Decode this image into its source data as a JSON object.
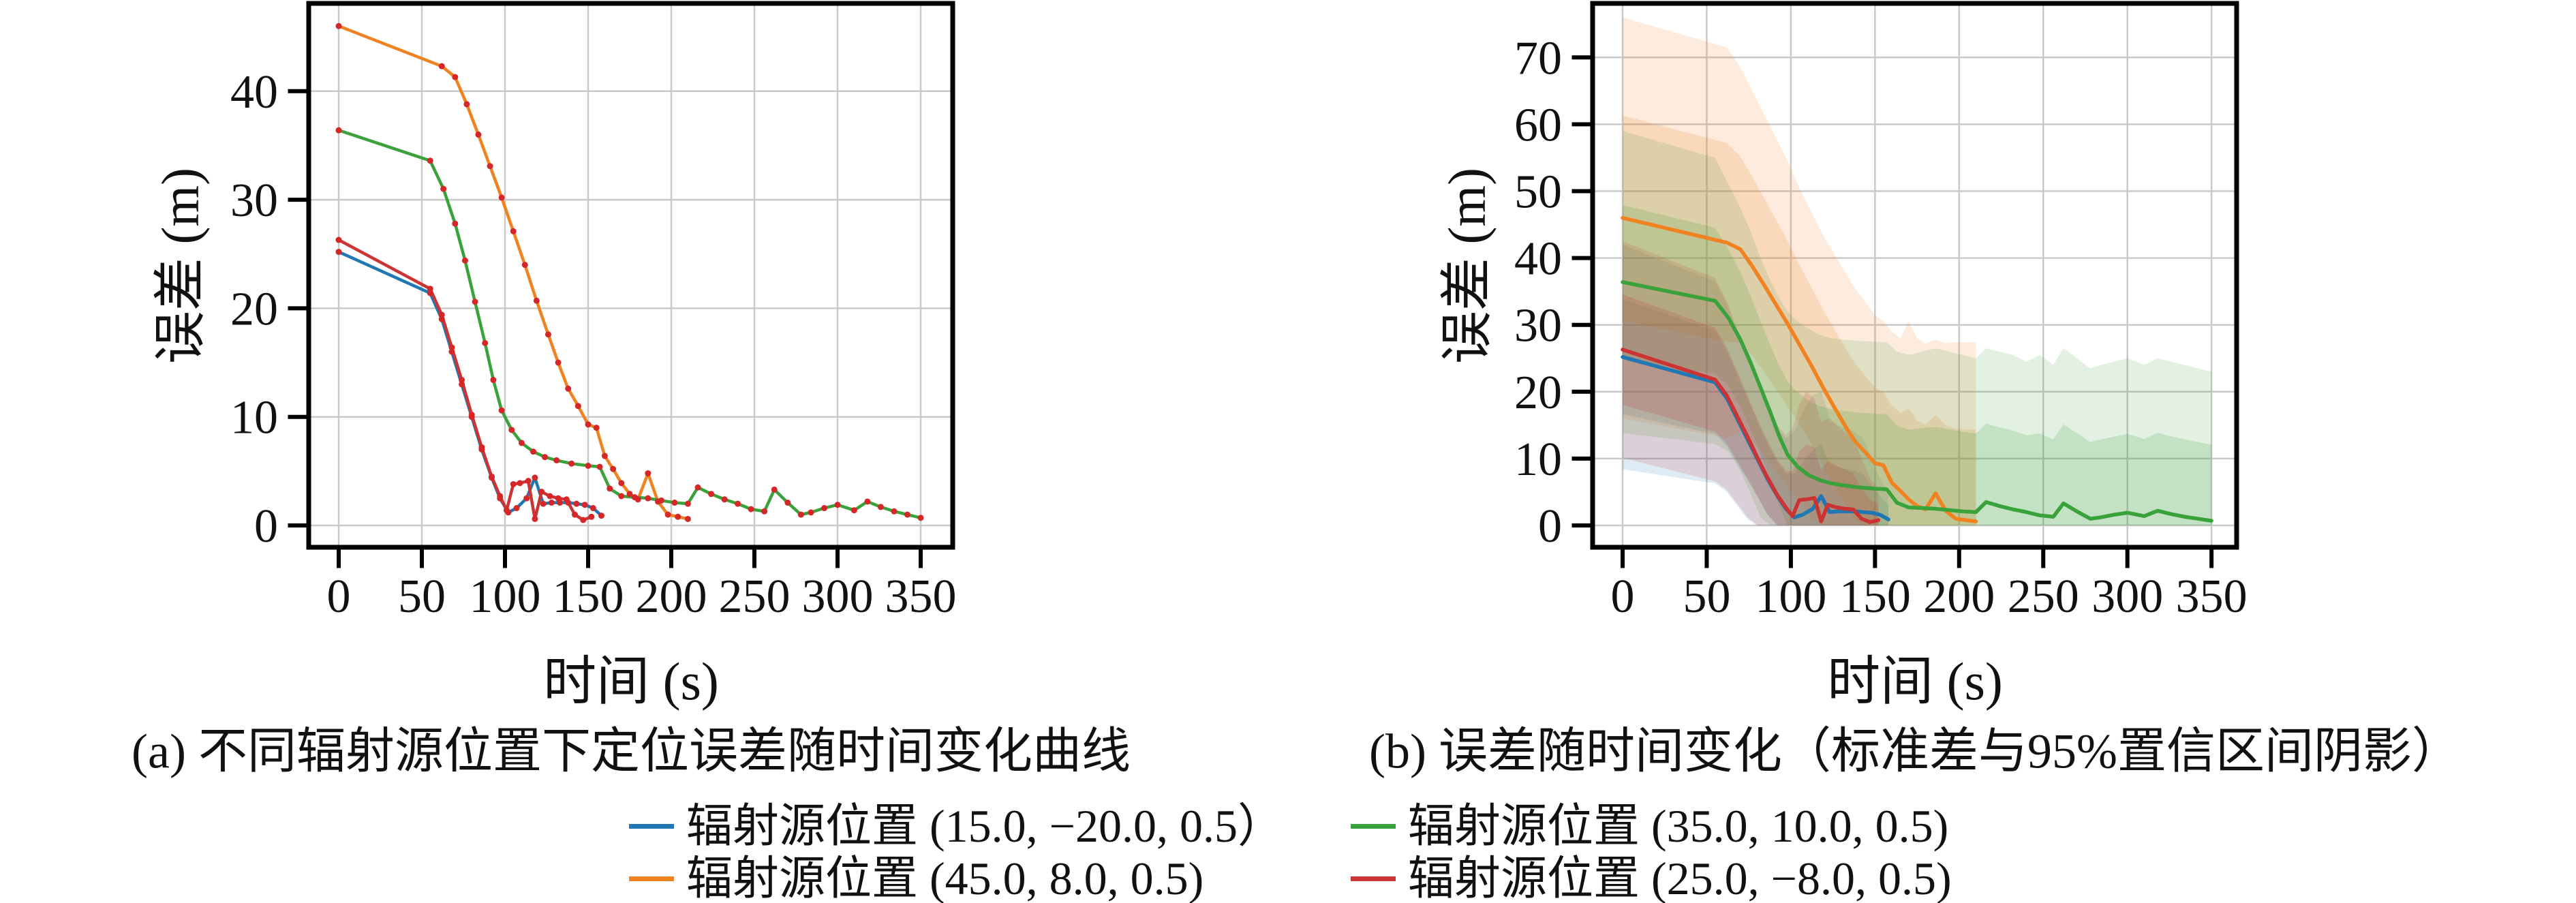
{
  "figure": {
    "background": "#ffffff",
    "text_color": "#111111",
    "grid_color": "#c9c9c9",
    "spine_color": "#000000",
    "marker_color": "#d62728"
  },
  "charts": {
    "a": {
      "caption": "(a) 不同辐射源位置下定位误差随时间变化曲线",
      "xlabel": "时间 (s)",
      "ylabel": "误差 (m)",
      "xticks": [
        0,
        50,
        100,
        150,
        200,
        250,
        300,
        350
      ],
      "yticks": [
        0,
        10,
        20,
        30,
        40
      ],
      "xlim": [
        -18,
        369
      ],
      "ylim": [
        -2,
        48.1
      ],
      "grid": true,
      "markers": true,
      "bands": false
    },
    "b": {
      "caption": "(b) 误差随时间变化（标准差与95%置信区间阴影）",
      "xlabel": "时间 (s)",
      "ylabel": "误差 (m)",
      "xticks": [
        0,
        50,
        100,
        150,
        200,
        250,
        300,
        350
      ],
      "yticks": [
        0,
        10,
        20,
        30,
        40,
        50,
        60,
        70
      ],
      "xlim": [
        -18,
        365
      ],
      "ylim": [
        -3.3,
        77.6
      ],
      "grid": true,
      "markers": false,
      "bands": true,
      "band_inner": "标准差",
      "band_outer": "95%置信区间"
    }
  },
  "chart_data": {
    "type": "line",
    "xlabel": "时间 (s)",
    "ylabel": "误差 (m)",
    "series": [
      {
        "name": "辐射源位置 (15.0, −20.0, 0.5）",
        "color": "#1f77b4",
        "x": [
          0,
          55,
          62,
          68,
          74,
          80,
          86,
          92,
          97,
          102,
          107,
          113,
          118,
          123,
          128,
          133,
          138,
          143,
          148,
          153,
          158
        ],
        "mean": [
          25.2,
          21.4,
          19.0,
          16.0,
          13.0,
          10.0,
          7.0,
          4.4,
          2.5,
          1.2,
          1.6,
          2.5,
          4.4,
          2.0,
          2.1,
          2.1,
          2.1,
          2.0,
          1.9,
          1.6,
          0.9
        ],
        "ci_upper": [
          42,
          36.5,
          33,
          29,
          25,
          21,
          17.5,
          14.5,
          13,
          14,
          17,
          19.5,
          20,
          16,
          15,
          14.5,
          14,
          13,
          10,
          7,
          5
        ]
      },
      {
        "name": "辐射源位置 (45.0, 8.0, 0.5)",
        "color": "#f08220",
        "x": [
          0,
          62,
          70,
          77,
          84,
          91,
          98,
          105,
          112,
          119,
          126,
          132,
          138,
          144,
          150,
          155,
          160,
          165,
          170,
          175,
          180,
          186,
          192,
          198,
          204,
          210
        ],
        "mean": [
          46.0,
          42.3,
          41.3,
          38.8,
          36.0,
          33.1,
          30.2,
          27.1,
          24.0,
          20.7,
          17.6,
          15.0,
          12.6,
          11.0,
          9.3,
          9.0,
          6.4,
          5.2,
          3.9,
          2.9,
          2.4,
          4.8,
          2.2,
          1.0,
          0.8,
          0.6
        ],
        "ci_upper": [
          76,
          71.5,
          68.5,
          65,
          61.5,
          58,
          54.5,
          50.5,
          47,
          43.5,
          40.5,
          38,
          35.5,
          33.5,
          31.5,
          30.5,
          29,
          28,
          30.5,
          28,
          27.2,
          27.8,
          27.3,
          27.4,
          27.4,
          27.5
        ]
      },
      {
        "name": "辐射源位置 (35.0, 10.0, 0.5)",
        "color": "#3aa23a",
        "x": [
          0,
          55,
          63,
          70,
          76,
          82,
          88,
          93,
          98,
          104,
          110,
          117,
          124,
          131,
          140,
          150,
          157,
          163,
          170,
          178,
          186,
          194,
          202,
          210,
          216,
          224,
          232,
          240,
          248,
          256,
          262,
          270,
          278,
          284,
          292,
          300,
          310,
          318,
          326,
          334,
          342,
          350
        ],
        "mean": [
          36.4,
          33.6,
          31.0,
          27.8,
          24.4,
          20.6,
          16.8,
          13.4,
          10.6,
          8.8,
          7.6,
          6.8,
          6.3,
          6.0,
          5.7,
          5.5,
          5.4,
          3.4,
          2.7,
          2.6,
          2.5,
          2.3,
          2.1,
          2.0,
          3.5,
          2.9,
          2.4,
          2.0,
          1.5,
          1.3,
          3.3,
          2.1,
          1.0,
          1.2,
          1.6,
          1.9,
          1.4,
          2.2,
          1.7,
          1.3,
          1.0,
          0.7
        ],
        "ci_upper": [
          59,
          55,
          51,
          47.5,
          44,
          40,
          36.5,
          34,
          32,
          30.5,
          29.5,
          28.5,
          28,
          27.8,
          27.6,
          27.5,
          27.4,
          26,
          25.5,
          26,
          26.5,
          26,
          25.5,
          25,
          26.5,
          26,
          25.5,
          24.5,
          25.5,
          24,
          26.5,
          25,
          23.5,
          24,
          24.5,
          25,
          24,
          25,
          24.5,
          24,
          23.5,
          23
        ]
      },
      {
        "name": "辐射源位置 (25.0, −8.0, 0.5)",
        "color": "#cc3333",
        "x": [
          0,
          55,
          62,
          68,
          74,
          80,
          86,
          92,
          97,
          101,
          105,
          109,
          114,
          118,
          122,
          127,
          132,
          137,
          142,
          147,
          152
        ],
        "mean": [
          26.3,
          21.8,
          19.4,
          16.4,
          13.4,
          10.2,
          7.2,
          4.5,
          2.7,
          1.4,
          3.8,
          3.9,
          4.1,
          0.6,
          3.1,
          2.7,
          2.5,
          2.4,
          1.0,
          0.5,
          0.8
        ],
        "ci_upper": [
          42.5,
          37,
          33.5,
          29.5,
          25.5,
          21.5,
          18,
          15,
          13.5,
          14.5,
          18,
          20,
          19,
          15.5,
          16,
          15,
          14,
          13,
          10,
          7,
          5.5
        ]
      }
    ]
  },
  "legend": {
    "columns": 2,
    "items": [
      {
        "label": "辐射源位置 (15.0, −20.0, 0.5）",
        "series_index": 0
      },
      {
        "label": "辐射源位置 (45.0, 8.0, 0.5)",
        "series_index": 1
      },
      {
        "label": "辐射源位置 (35.0, 10.0, 0.5)",
        "series_index": 2
      },
      {
        "label": "辐射源位置 (25.0, −8.0, 0.5)",
        "series_index": 3
      }
    ]
  }
}
